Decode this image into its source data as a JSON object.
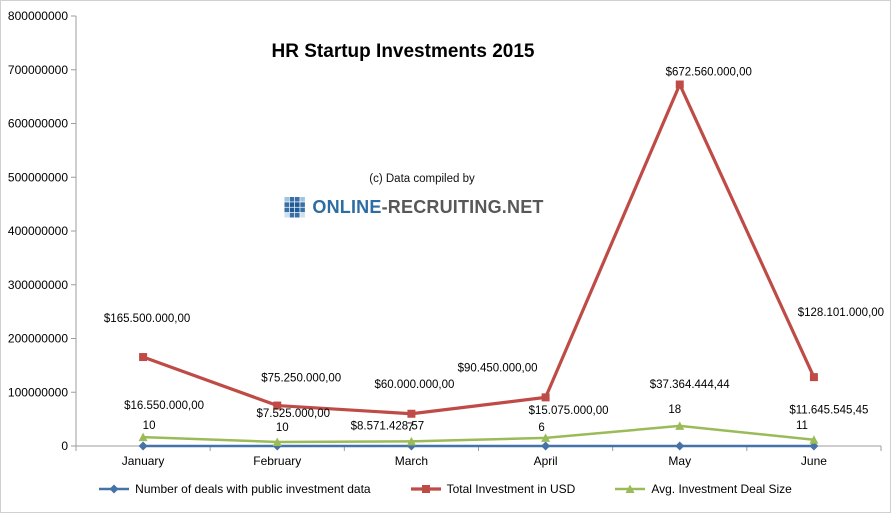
{
  "chart_data": {
    "type": "line",
    "title": "HR Startup Investments 2015",
    "categories": [
      "January",
      "February",
      "March",
      "April",
      "May",
      "June"
    ],
    "xlabel": "",
    "ylabel": "",
    "ylim": [
      0,
      800000000
    ],
    "ytick_interval": 100000000,
    "grid": false,
    "legend_position": "bottom",
    "series": [
      {
        "name": "Number of deals with public investment data",
        "color": "#4572a7",
        "marker": "diamond",
        "values": [
          10,
          10,
          7,
          6,
          18,
          11
        ],
        "labels": [
          "10",
          "10",
          "7",
          "6",
          "18",
          "11"
        ]
      },
      {
        "name": "Total Investment in USD",
        "color": "#bf4b47",
        "marker": "square",
        "values": [
          165500000,
          75250000,
          60000000,
          90450000,
          672560000,
          128101000
        ],
        "labels": [
          "$165.500.000,00",
          "$75.250.000,00",
          "$60.000.000,00",
          "$90.450.000,00",
          "$672.560.000,00",
          "$128.101.000,00"
        ]
      },
      {
        "name": "Avg. Investment Deal Size",
        "color": "#9abb58",
        "marker": "triangle",
        "values": [
          16550000,
          7525000,
          8571428.57,
          15075000,
          37364444.44,
          11645545.45
        ],
        "labels": [
          "$16.550.000,00",
          "$7.525.000,00",
          "$8.571.428,57",
          "$15.075.000,00",
          "$37.364.444,44",
          "$11.645.545,45"
        ]
      }
    ]
  },
  "watermark": {
    "credit": "(c) Data compiled by",
    "brand_primary": "ONLINE",
    "brand_secondary": "-RECRUITING",
    "brand_suffix": ".NET"
  }
}
